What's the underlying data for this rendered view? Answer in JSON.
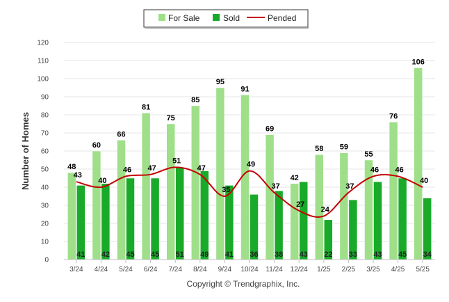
{
  "chart_data": {
    "type": "bar",
    "categories": [
      "3/24",
      "4/24",
      "5/24",
      "6/24",
      "7/24",
      "8/24",
      "9/24",
      "10/24",
      "11/24",
      "12/24",
      "1/25",
      "2/25",
      "3/25",
      "4/25",
      "5/25"
    ],
    "series": [
      {
        "name": "For Sale",
        "kind": "bar",
        "color": "#9fdf8a",
        "values": [
          48,
          60,
          66,
          81,
          75,
          85,
          95,
          91,
          69,
          42,
          58,
          59,
          55,
          76,
          106
        ]
      },
      {
        "name": "Sold",
        "kind": "bar",
        "color": "#1aaa2a",
        "values": [
          41,
          42,
          45,
          45,
          51,
          49,
          41,
          36,
          38,
          43,
          22,
          33,
          43,
          45,
          34
        ]
      },
      {
        "name": "Pended",
        "kind": "line",
        "color": "#c40000",
        "values": [
          43,
          40,
          46,
          47,
          51,
          47,
          35,
          49,
          37,
          27,
          24,
          37,
          46,
          46,
          40
        ]
      }
    ],
    "ylabel": "Number of Homes",
    "ylim": [
      0,
      120
    ],
    "yticks": [
      0,
      10,
      20,
      30,
      40,
      50,
      60,
      70,
      80,
      90,
      100,
      110,
      120
    ],
    "grid": true,
    "legend_position": "top-center",
    "footer": "Copyright © Trendgraphix, Inc."
  }
}
